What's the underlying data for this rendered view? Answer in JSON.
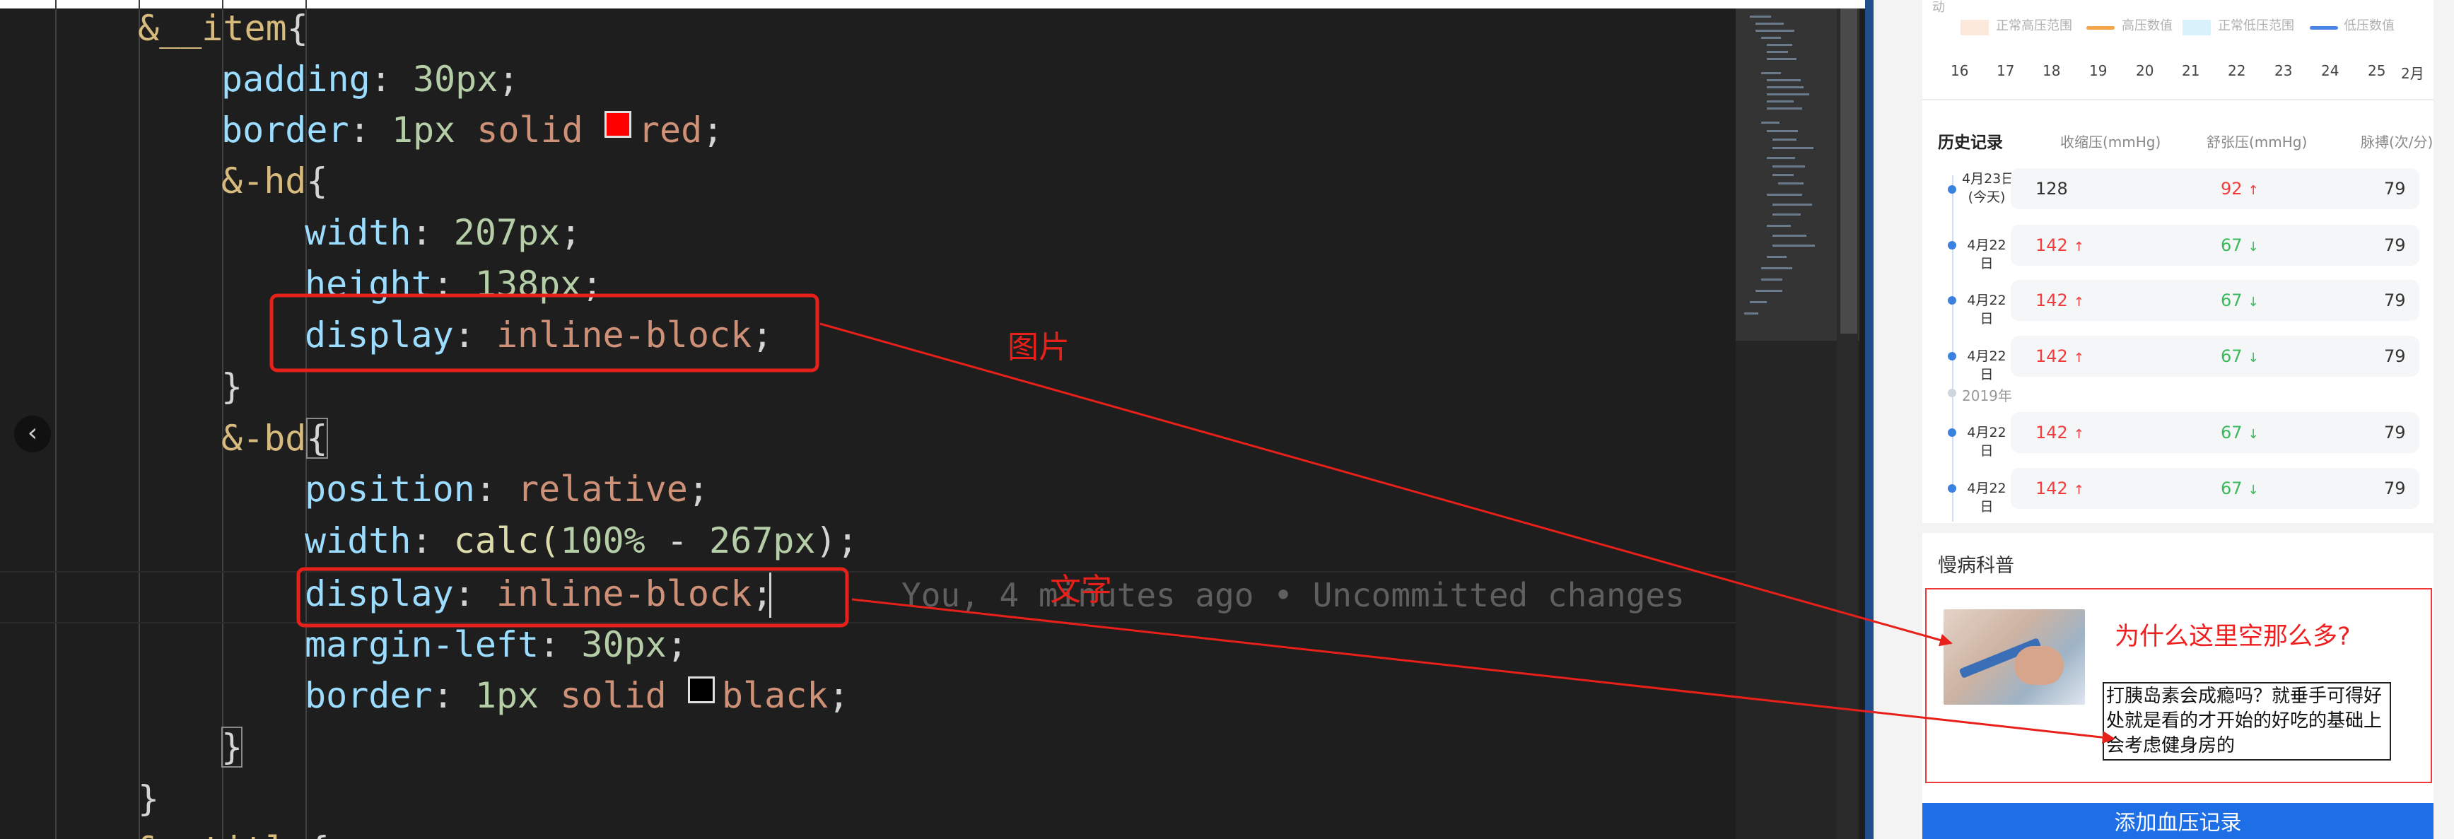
{
  "editor": {
    "lines": [
      {
        "sel": "&__item",
        "brace": "{"
      },
      {
        "prop": "padding",
        "num": "30px",
        "end": ";"
      },
      {
        "prop": "border",
        "num": "1px",
        "val": "solid",
        "swatch": "#ff0000",
        "color_word": "red",
        "end": ";"
      },
      {
        "sel": "&-hd",
        "brace": "{"
      },
      {
        "prop": "width",
        "num": "207px",
        "end": ";"
      },
      {
        "prop": "height",
        "num": "138px",
        "end": ";"
      },
      {
        "prop": "display",
        "val": "inline-block",
        "end": ";"
      },
      {
        "close": "}"
      },
      {
        "sel": "&-bd",
        "brace": "{"
      },
      {
        "prop": "position",
        "val": "relative",
        "end": ";"
      },
      {
        "prop": "width",
        "val": "calc(",
        "num": "100%",
        "op": " - ",
        "num2": "267px",
        "end": ");"
      },
      {
        "prop": "display",
        "val": "inline-block",
        "end": ";"
      },
      {
        "prop": "margin-left",
        "num": "30px",
        "end": ";"
      },
      {
        "prop": "border",
        "num": "1px",
        "val": "solid",
        "swatch": "#000000",
        "color_word": "black",
        "end": ";"
      },
      {
        "close": "}"
      },
      {
        "close": "}"
      },
      {
        "sel": "&__title",
        "brace": "{"
      }
    ],
    "blame": "You, 4 minutes ago • Uncommitted changes",
    "fold_icon": "‹"
  },
  "preview": {
    "legend": {
      "cut_label": "动",
      "items": [
        {
          "label": "正常高压范围",
          "color": "#fde9dc",
          "kind": "area"
        },
        {
          "label": "高压数值",
          "color": "#f5a44a",
          "kind": "line"
        },
        {
          "label": "正常低压范围",
          "color": "#d9f1fb",
          "kind": "area"
        },
        {
          "label": "低压数值",
          "color": "#4a86e8",
          "kind": "line"
        }
      ]
    },
    "x_ticks": [
      "16",
      "17",
      "18",
      "19",
      "20",
      "21",
      "22",
      "23",
      "24",
      "25",
      "2月"
    ],
    "history": {
      "title": "历史记录",
      "headers": [
        "收缩压(mmHg)",
        "舒张压(mmHg)",
        "脉搏(次/分)"
      ],
      "rows": [
        {
          "date": "4月23日\n(今天)",
          "sys": "128",
          "sys_flag": "normal",
          "dia": "92",
          "dia_flag": "up",
          "pulse": "79"
        },
        {
          "date": "4月22日",
          "sys": "142",
          "sys_flag": "up",
          "dia": "67",
          "dia_flag": "down",
          "pulse": "79"
        },
        {
          "date": "4月22日",
          "sys": "142",
          "sys_flag": "up",
          "dia": "67",
          "dia_flag": "down",
          "pulse": "79"
        },
        {
          "date": "4月22日",
          "sys": "142",
          "sys_flag": "up",
          "dia": "67",
          "dia_flag": "down",
          "pulse": "79"
        },
        {
          "date": "4月22日",
          "sys": "142",
          "sys_flag": "up",
          "dia": "67",
          "dia_flag": "down",
          "pulse": "79"
        },
        {
          "date": "4月22日",
          "sys": "142",
          "sys_flag": "up",
          "dia": "67",
          "dia_flag": "down",
          "pulse": "79"
        }
      ],
      "year_label": "2019年",
      "up_arrow": "↑",
      "down_arrow": "↓"
    },
    "section_title": "慢病科普",
    "article": {
      "question": "为什么这里空那么多?",
      "text": "打胰岛素会成瘾吗？就垂手可得好处就是看的才开始的好吃的基础上会考虑健身房的"
    },
    "add_button": "添加血压记录"
  },
  "annotations": {
    "image_label": "图片",
    "text_label": "文字",
    "color": "#e8201a"
  }
}
